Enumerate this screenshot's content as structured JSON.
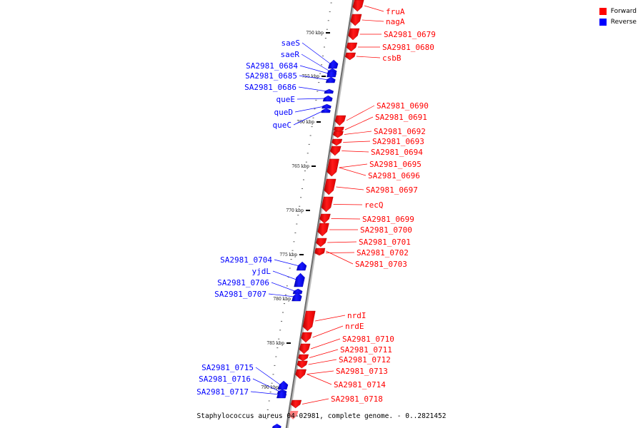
{
  "legend": {
    "forward_label": "Forward",
    "reverse_label": "Reverse",
    "forward_color": "#ff0000",
    "reverse_color": "#0000ff"
  },
  "caption": "Staphylococcus aureus 04-02981, complete genome. - 0..2821452",
  "scale_labels": [
    "750 kbp",
    "755 kbp",
    "760 kbp",
    "765 kbp",
    "770 kbp",
    "775 kbp",
    "780 kbp",
    "785 kbp",
    "790 kbp"
  ],
  "forward_genes": [
    "fruA",
    "nagA",
    "SA2981_0679",
    "SA2981_0680",
    "csbB",
    "SA2981_0690",
    "SA2981_0691",
    "SA2981_0692",
    "SA2981_0693",
    "SA2981_0694",
    "SA2981_0695",
    "SA2981_0696",
    "SA2981_0697",
    "recQ",
    "SA2981_0699",
    "SA2981_0700",
    "SA2981_0701",
    "SA2981_0702",
    "SA2981_0703",
    "nrdI",
    "nrdE",
    "SA2981_0710",
    "SA2981_0711",
    "SA2981_0712",
    "SA2981_0713",
    "SA2981_0714",
    "SA2981_0718"
  ],
  "reverse_genes": [
    "saeS",
    "saeR",
    "SA2981_0684",
    "SA2981_0685",
    "SA2981_0686",
    "queE",
    "queD",
    "queC",
    "SA2981_0704",
    "yjdL",
    "SA2981_0706",
    "SA2981_0707",
    "SA2981_0715",
    "SA2981_0716",
    "SA2981_0717"
  ]
}
